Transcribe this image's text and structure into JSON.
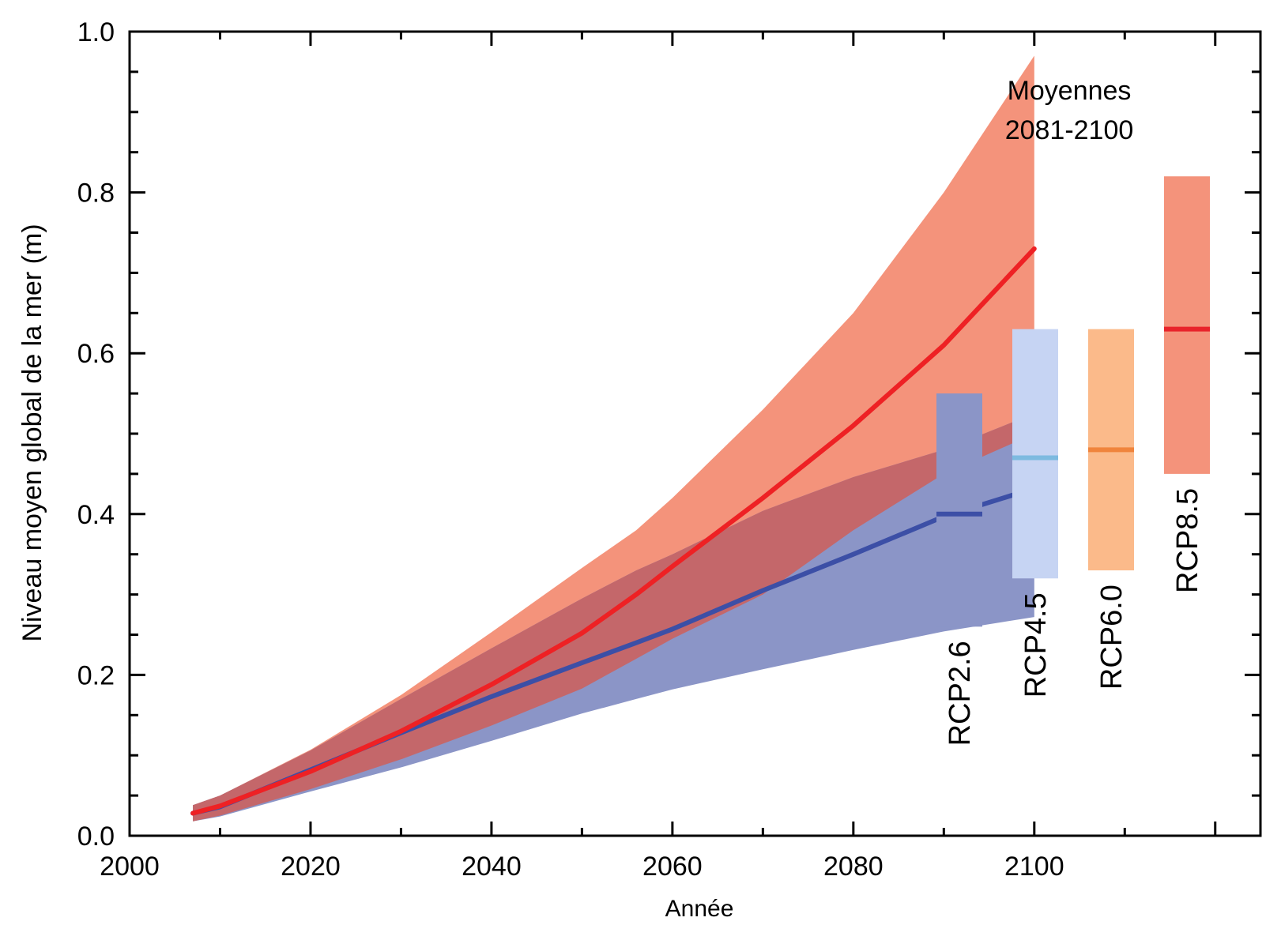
{
  "chart_data": {
    "type": "line",
    "xlabel": "Année",
    "ylabel": "Niveau moyen global de la mer (m)",
    "xlim": [
      2000,
      2125
    ],
    "ylim": [
      0.0,
      1.0
    ],
    "x_ticks": [
      "2000",
      "2020",
      "2040",
      "2060",
      "2080",
      "2100"
    ],
    "y_ticks": [
      "0.0",
      "0.2",
      "0.4",
      "0.6",
      "0.8",
      "1.0"
    ],
    "grid": false,
    "annotation": {
      "line1": "Moyennes",
      "line2": "2081-2100"
    },
    "colors": {
      "rcp26_band": "#8b95c7",
      "rcp85_band": "#f4937b",
      "band_overlap": "#c4676a",
      "rcp26_line": "#3c4fa6",
      "rcp85_line": "#ee2124"
    },
    "series": [
      {
        "name": "RCP2.6",
        "x": [
          2007,
          2010,
          2020,
          2030,
          2040,
          2050,
          2056,
          2060,
          2070,
          2080,
          2090,
          2100
        ],
        "y": [
          0.028,
          0.036,
          0.082,
          0.128,
          0.173,
          0.215,
          0.24,
          0.257,
          0.305,
          0.35,
          0.397,
          0.432
        ],
        "lower": [
          0.018,
          0.024,
          0.055,
          0.085,
          0.118,
          0.152,
          0.17,
          0.182,
          0.207,
          0.231,
          0.254,
          0.272
        ],
        "upper": [
          0.038,
          0.05,
          0.106,
          0.17,
          0.233,
          0.295,
          0.33,
          0.35,
          0.404,
          0.446,
          0.48,
          0.525
        ]
      },
      {
        "name": "RCP8.5",
        "x": [
          2007,
          2010,
          2020,
          2030,
          2040,
          2050,
          2056,
          2060,
          2070,
          2080,
          2090,
          2100
        ],
        "y": [
          0.028,
          0.037,
          0.08,
          0.13,
          0.188,
          0.252,
          0.3,
          0.335,
          0.42,
          0.51,
          0.61,
          0.73
        ],
        "lower": [
          0.018,
          0.025,
          0.058,
          0.095,
          0.137,
          0.183,
          0.22,
          0.245,
          0.3,
          0.38,
          0.45,
          0.5
        ],
        "upper": [
          0.038,
          0.05,
          0.107,
          0.175,
          0.253,
          0.333,
          0.38,
          0.42,
          0.53,
          0.65,
          0.8,
          0.97
        ]
      }
    ],
    "period_means": [
      {
        "label": "RCP2.6",
        "mean": 0.4,
        "low": 0.26,
        "high": 0.55,
        "bar_color": "#8b95c7",
        "line_color": "#3c4fa6"
      },
      {
        "label": "RCP4.5",
        "mean": 0.47,
        "low": 0.32,
        "high": 0.63,
        "bar_color": "#c6d4f3",
        "line_color": "#7dbae0"
      },
      {
        "label": "RCP6.0",
        "mean": 0.48,
        "low": 0.33,
        "high": 0.63,
        "bar_color": "#fbba8a",
        "line_color": "#f0843c"
      },
      {
        "label": "RCP8.5",
        "mean": 0.63,
        "low": 0.45,
        "high": 0.82,
        "bar_color": "#f4937b",
        "line_color": "#e8232a"
      }
    ]
  }
}
